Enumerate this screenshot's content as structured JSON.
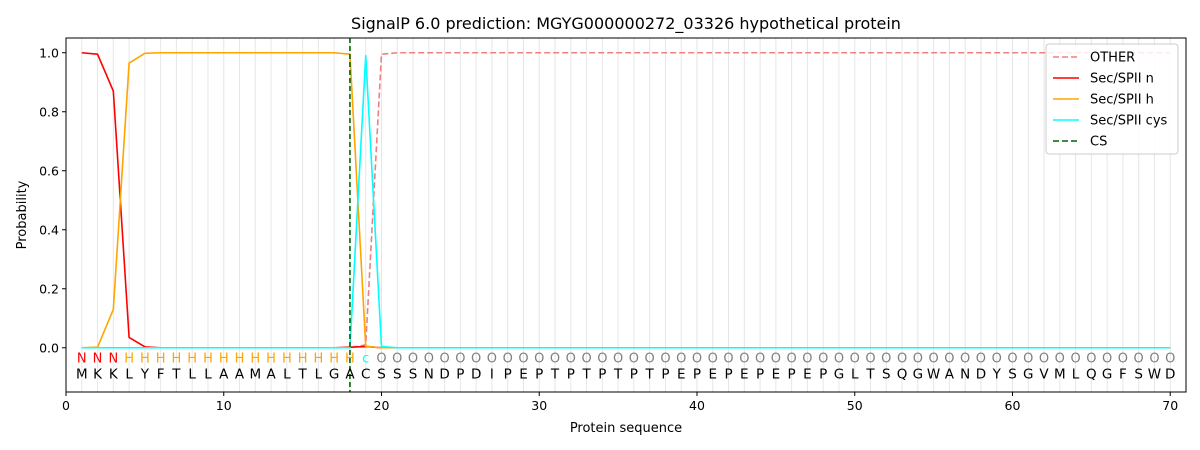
{
  "chart_data": {
    "type": "line",
    "title": "SignalP 6.0 prediction: MGYG000000272_03326 hypothetical protein",
    "xlabel": "Protein sequence",
    "ylabel": "Probability",
    "xlim": [
      0,
      71
    ],
    "ylim": [
      -0.15,
      1.05
    ],
    "xticks": [
      0,
      10,
      20,
      30,
      40,
      50,
      60,
      70
    ],
    "yticks": [
      0.0,
      0.2,
      0.4,
      0.6,
      0.8,
      1.0
    ],
    "xtick_labels": [
      "0",
      "10",
      "20",
      "30",
      "40",
      "50",
      "60",
      "70"
    ],
    "ytick_labels": [
      "0.0",
      "0.2",
      "0.4",
      "0.6",
      "0.8",
      "1.0"
    ],
    "legend_position": "top-right",
    "grid": "vertical lines at each residue",
    "sequence": [
      "M",
      "K",
      "K",
      "L",
      "Y",
      "F",
      "T",
      "L",
      "L",
      "A",
      "A",
      "M",
      "A",
      "L",
      "T",
      "L",
      "G",
      "A",
      "C",
      "S",
      "S",
      "S",
      "N",
      "D",
      "P",
      "D",
      "I",
      "P",
      "E",
      "P",
      "T",
      "P",
      "T",
      "P",
      "T",
      "P",
      "T",
      "P",
      "E",
      "P",
      "E",
      "P",
      "E",
      "P",
      "E",
      "P",
      "E",
      "P",
      "G",
      "L",
      "T",
      "S",
      "Q",
      "G",
      "W",
      "A",
      "N",
      "D",
      "Y",
      "S",
      "G",
      "V",
      "M",
      "L",
      "Q",
      "G",
      "F",
      "S",
      "W",
      "D"
    ],
    "annotation": [
      "N",
      "N",
      "N",
      "H",
      "H",
      "H",
      "H",
      "H",
      "H",
      "H",
      "H",
      "H",
      "H",
      "H",
      "H",
      "H",
      "H",
      "H",
      "c",
      "O",
      "O",
      "O",
      "O",
      "O",
      "O",
      "O",
      "O",
      "O",
      "O",
      "O",
      "O",
      "O",
      "O",
      "O",
      "O",
      "O",
      "O",
      "O",
      "O",
      "O",
      "O",
      "O",
      "O",
      "O",
      "O",
      "O",
      "O",
      "O",
      "O",
      "O",
      "O",
      "O",
      "O",
      "O",
      "O",
      "O",
      "O",
      "O",
      "O",
      "O",
      "O",
      "O",
      "O",
      "O",
      "O",
      "O",
      "O",
      "O",
      "O",
      "O"
    ],
    "annotation_colors": {
      "N": "#ff0000",
      "H": "#ffa500",
      "c": "#00ffff",
      "O": "#808080"
    },
    "cleavage_site": 18,
    "series": [
      {
        "name": "OTHER",
        "color": "#f08080",
        "dash": "dashed",
        "x": [
          1,
          2,
          3,
          4,
          5,
          6,
          7,
          8,
          9,
          10,
          11,
          12,
          13,
          14,
          15,
          16,
          17,
          18,
          19,
          20,
          21,
          22,
          23,
          24,
          25,
          26,
          27,
          28,
          29,
          30,
          31,
          32,
          33,
          34,
          35,
          36,
          37,
          38,
          39,
          40,
          41,
          42,
          43,
          44,
          45,
          46,
          47,
          48,
          49,
          50,
          51,
          52,
          53,
          54,
          55,
          56,
          57,
          58,
          59,
          60,
          61,
          62,
          63,
          64,
          65,
          66,
          67,
          68,
          69,
          70
        ],
        "values": [
          0,
          0,
          0,
          0,
          0,
          0,
          0,
          0,
          0,
          0,
          0,
          0,
          0,
          0,
          0,
          0,
          0,
          0,
          0.01,
          0.995,
          1,
          1,
          1,
          1,
          1,
          1,
          1,
          1,
          1,
          1,
          1,
          1,
          1,
          1,
          1,
          1,
          1,
          1,
          1,
          1,
          1,
          1,
          1,
          1,
          1,
          1,
          1,
          1,
          1,
          1,
          1,
          1,
          1,
          1,
          1,
          1,
          1,
          1,
          1,
          1,
          1,
          1,
          1,
          1,
          1,
          1,
          1,
          1,
          1,
          1
        ]
      },
      {
        "name": "Sec/SPII n",
        "color": "#ff0000",
        "dash": "solid",
        "x": [
          1,
          2,
          3,
          4,
          5,
          6,
          7,
          8,
          9,
          10,
          11,
          12,
          13,
          14,
          15,
          16,
          17,
          18,
          19,
          20,
          21,
          22,
          23,
          24,
          25,
          26,
          27,
          28,
          29,
          30,
          31,
          32,
          33,
          34,
          35,
          36,
          37,
          38,
          39,
          40,
          41,
          42,
          43,
          44,
          45,
          46,
          47,
          48,
          49,
          50,
          51,
          52,
          53,
          54,
          55,
          56,
          57,
          58,
          59,
          60,
          61,
          62,
          63,
          64,
          65,
          66,
          67,
          68,
          69,
          70
        ],
        "values": [
          1.0,
          0.995,
          0.87,
          0.035,
          0.003,
          0,
          0,
          0,
          0,
          0,
          0,
          0,
          0,
          0,
          0,
          0,
          0,
          0.002,
          0.004,
          0,
          0,
          0,
          0,
          0,
          0,
          0,
          0,
          0,
          0,
          0,
          0,
          0,
          0,
          0,
          0,
          0,
          0,
          0,
          0,
          0,
          0,
          0,
          0,
          0,
          0,
          0,
          0,
          0,
          0,
          0,
          0,
          0,
          0,
          0,
          0,
          0,
          0,
          0,
          0,
          0,
          0,
          0,
          0,
          0,
          0,
          0,
          0,
          0,
          0,
          0
        ]
      },
      {
        "name": "Sec/SPII h",
        "color": "#ffa500",
        "dash": "solid",
        "x": [
          1,
          2,
          3,
          4,
          5,
          6,
          7,
          8,
          9,
          10,
          11,
          12,
          13,
          14,
          15,
          16,
          17,
          18,
          19,
          20,
          21,
          22,
          23,
          24,
          25,
          26,
          27,
          28,
          29,
          30,
          31,
          32,
          33,
          34,
          35,
          36,
          37,
          38,
          39,
          40,
          41,
          42,
          43,
          44,
          45,
          46,
          47,
          48,
          49,
          50,
          51,
          52,
          53,
          54,
          55,
          56,
          57,
          58,
          59,
          60,
          61,
          62,
          63,
          64,
          65,
          66,
          67,
          68,
          69,
          70
        ],
        "values": [
          0,
          0.002,
          0.13,
          0.965,
          0.998,
          1,
          1,
          1,
          1,
          1,
          1,
          1,
          1,
          1,
          1,
          1,
          1,
          0.995,
          0.005,
          0,
          0,
          0,
          0,
          0,
          0,
          0,
          0,
          0,
          0,
          0,
          0,
          0,
          0,
          0,
          0,
          0,
          0,
          0,
          0,
          0,
          0,
          0,
          0,
          0,
          0,
          0,
          0,
          0,
          0,
          0,
          0,
          0,
          0,
          0,
          0,
          0,
          0,
          0,
          0,
          0,
          0,
          0,
          0,
          0,
          0,
          0,
          0,
          0,
          0,
          0
        ]
      },
      {
        "name": "Sec/SPII cys",
        "color": "#00ffff",
        "dash": "solid",
        "x": [
          1,
          2,
          3,
          4,
          5,
          6,
          7,
          8,
          9,
          10,
          11,
          12,
          13,
          14,
          15,
          16,
          17,
          18,
          19,
          20,
          21,
          22,
          23,
          24,
          25,
          26,
          27,
          28,
          29,
          30,
          31,
          32,
          33,
          34,
          35,
          36,
          37,
          38,
          39,
          40,
          41,
          42,
          43,
          44,
          45,
          46,
          47,
          48,
          49,
          50,
          51,
          52,
          53,
          54,
          55,
          56,
          57,
          58,
          59,
          60,
          61,
          62,
          63,
          64,
          65,
          66,
          67,
          68,
          69,
          70
        ],
        "values": [
          0,
          0,
          0,
          0,
          0,
          0,
          0,
          0,
          0,
          0,
          0,
          0,
          0,
          0,
          0,
          0,
          0,
          0,
          0.99,
          0.004,
          0,
          0,
          0,
          0,
          0,
          0,
          0,
          0,
          0,
          0,
          0,
          0,
          0,
          0,
          0,
          0,
          0,
          0,
          0,
          0,
          0,
          0,
          0,
          0,
          0,
          0,
          0,
          0,
          0,
          0,
          0,
          0,
          0,
          0,
          0,
          0,
          0,
          0,
          0,
          0,
          0,
          0,
          0,
          0,
          0,
          0,
          0,
          0,
          0,
          0
        ]
      }
    ],
    "cs_legend_label": "CS",
    "cs_color": "#006400"
  }
}
